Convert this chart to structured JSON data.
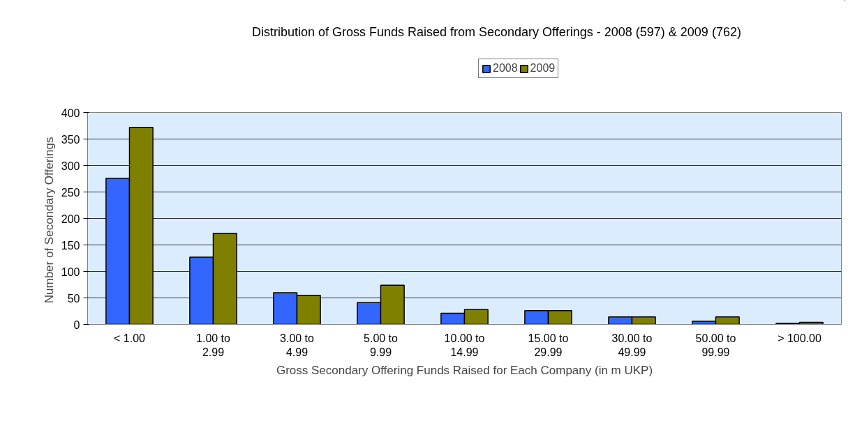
{
  "chart_data": {
    "type": "bar",
    "title": "Distribution of Gross Funds Raised from Secondary Offerings - 2008 (597) & 2009 (762)",
    "xlabel": "Gross Secondary Offering Funds Raised for Each Company (in m UKP)",
    "ylabel": "Number of  Secondary Offerings",
    "categories": [
      "< 1.00",
      "1.00 to 2.99",
      "3.00 to 4.99",
      "5.00 to 9.99",
      "10.00 to 14.99",
      "15.00 to 29.99",
      "30.00 to 49.99",
      "50.00 to 99.99",
      "> 100.00"
    ],
    "series": [
      {
        "name": "2008",
        "color": "#3366ff",
        "values": [
          276,
          127,
          60,
          41,
          21,
          26,
          14,
          6,
          2
        ]
      },
      {
        "name": "2009",
        "color": "#808000",
        "values": [
          372,
          172,
          55,
          74,
          28,
          26,
          14,
          14,
          4
        ]
      }
    ],
    "ylim": [
      0,
      400
    ],
    "yticks": [
      0,
      50,
      100,
      150,
      200,
      250,
      300,
      350,
      400
    ],
    "grid": "y",
    "legend": "top"
  }
}
